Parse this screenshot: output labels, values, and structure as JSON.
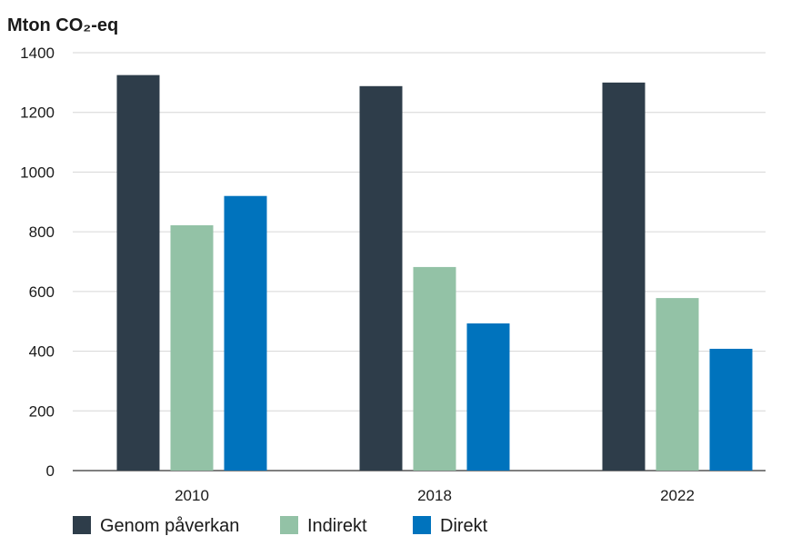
{
  "chart_data": {
    "type": "bar",
    "title": "",
    "ylabel": "Mton CO₂-eq",
    "xlabel": "",
    "categories": [
      "2010",
      "2018",
      "2022"
    ],
    "ylim": [
      0,
      1400
    ],
    "yticks": [
      0,
      200,
      400,
      600,
      800,
      1000,
      1200,
      1400
    ],
    "grid": true,
    "legend_position": "bottom-left",
    "series": [
      {
        "name": "Genom påverkan",
        "values": [
          1325,
          1288,
          1300
        ],
        "color": "#2e3d4a"
      },
      {
        "name": "Indirekt",
        "values": [
          822,
          682,
          578
        ],
        "color": "#93c2a6"
      },
      {
        "name": "Direkt",
        "values": [
          920,
          493,
          408
        ],
        "color": "#0073bd"
      }
    ]
  }
}
